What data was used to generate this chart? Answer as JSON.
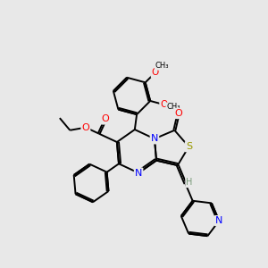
{
  "bg_color": "#e8e8e8",
  "bond_color": "#000000",
  "bond_width": 1.4,
  "figsize": [
    3.0,
    3.0
  ],
  "dpi": 100,
  "xlim": [
    0,
    10
  ],
  "ylim": [
    0,
    10
  ]
}
